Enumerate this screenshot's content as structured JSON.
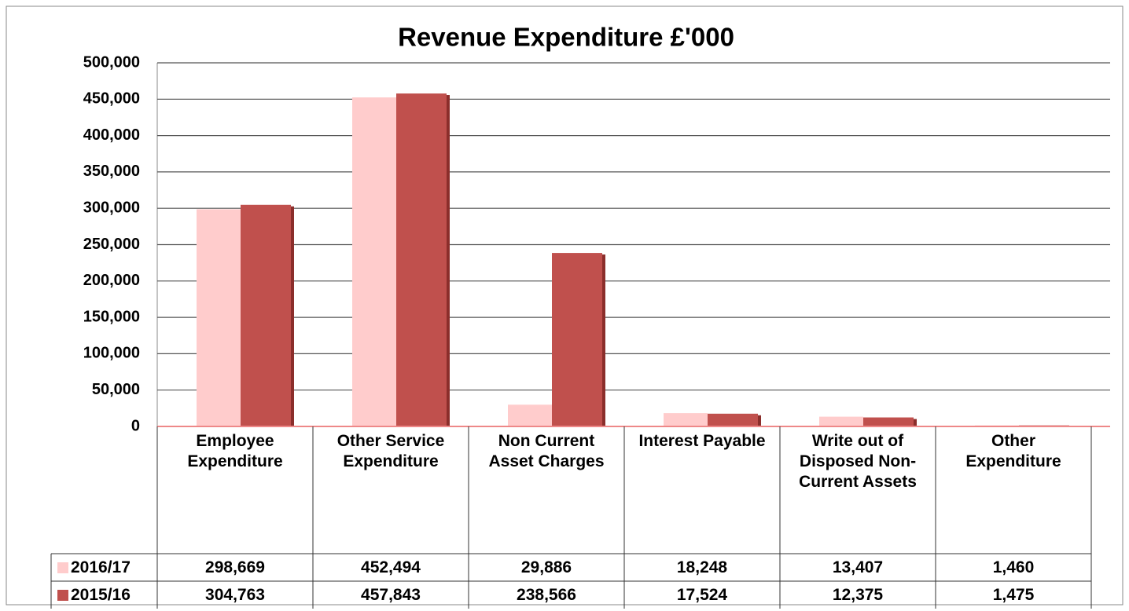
{
  "chart_data": {
    "type": "bar",
    "title": "Revenue Expenditure £'000",
    "categories": [
      "Employee Expenditure",
      "Other Service Expenditure",
      "Non Current Asset Charges",
      "Interest Payable",
      "Write out of Disposed Non-Current Assets",
      "Other Expenditure"
    ],
    "series": [
      {
        "name": "2016/17",
        "color": "#ffcccc",
        "values": [
          298669,
          452494,
          29886,
          18248,
          13407,
          1460
        ],
        "value_labels": [
          "298,669",
          "452,494",
          "29,886",
          "18,248",
          "13,407",
          "1,460"
        ]
      },
      {
        "name": "2015/16",
        "color": "#c0504d",
        "values": [
          304763,
          457843,
          238566,
          17524,
          12375,
          1475
        ],
        "value_labels": [
          "304,763",
          "457,843",
          "238,566",
          "17,524",
          "12,375",
          "1,475"
        ]
      }
    ],
    "ylim": [
      0,
      500000
    ],
    "yticks": [
      0,
      {
        "value": 50000,
        "label": "50,000"
      },
      {
        "value": 100000,
        "label": "100,000"
      },
      {
        "value": 150000,
        "label": "150,000"
      },
      {
        "value": 200000,
        "label": "200,000"
      },
      {
        "value": 250000,
        "label": "250,000"
      },
      {
        "value": 300000,
        "label": "300,000"
      },
      {
        "value": 350000,
        "label": "350,000"
      },
      {
        "value": 400000,
        "label": "400,000"
      },
      {
        "value": 450000,
        "label": "450,000"
      },
      {
        "value": 500000,
        "label": "500,000"
      }
    ],
    "grid": true,
    "data_table": true
  }
}
